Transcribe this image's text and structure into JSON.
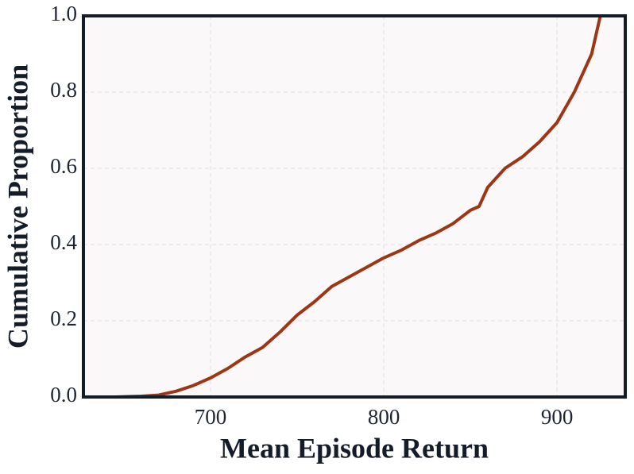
{
  "chart_data": {
    "type": "line",
    "xlabel": "Mean Episode Return",
    "ylabel": "Cumulative Proportion",
    "x": [
      645,
      660,
      670,
      680,
      690,
      700,
      710,
      720,
      730,
      740,
      750,
      760,
      770,
      780,
      790,
      800,
      810,
      820,
      830,
      840,
      850,
      855,
      860,
      870,
      880,
      890,
      900,
      910,
      920,
      925
    ],
    "series": [
      {
        "color": "#9c3614",
        "values": [
          0,
          0.002,
          0.005,
          0.015,
          0.03,
          0.05,
          0.075,
          0.105,
          0.13,
          0.17,
          0.215,
          0.25,
          0.29,
          0.315,
          0.34,
          0.365,
          0.385,
          0.41,
          0.43,
          0.455,
          0.49,
          0.5,
          0.55,
          0.6,
          0.63,
          0.67,
          0.72,
          0.8,
          0.9,
          1.0
        ]
      }
    ],
    "xlim": [
      626.6,
      939.4
    ],
    "ylim": [
      0,
      1
    ],
    "xticks": [
      700,
      800,
      900
    ],
    "yticks": [
      {
        "value": 0,
        "label": "0.0"
      },
      0.2,
      0.4,
      0.6,
      0.8,
      {
        "value": 1,
        "label": "1.0"
      }
    ],
    "grid": true
  }
}
